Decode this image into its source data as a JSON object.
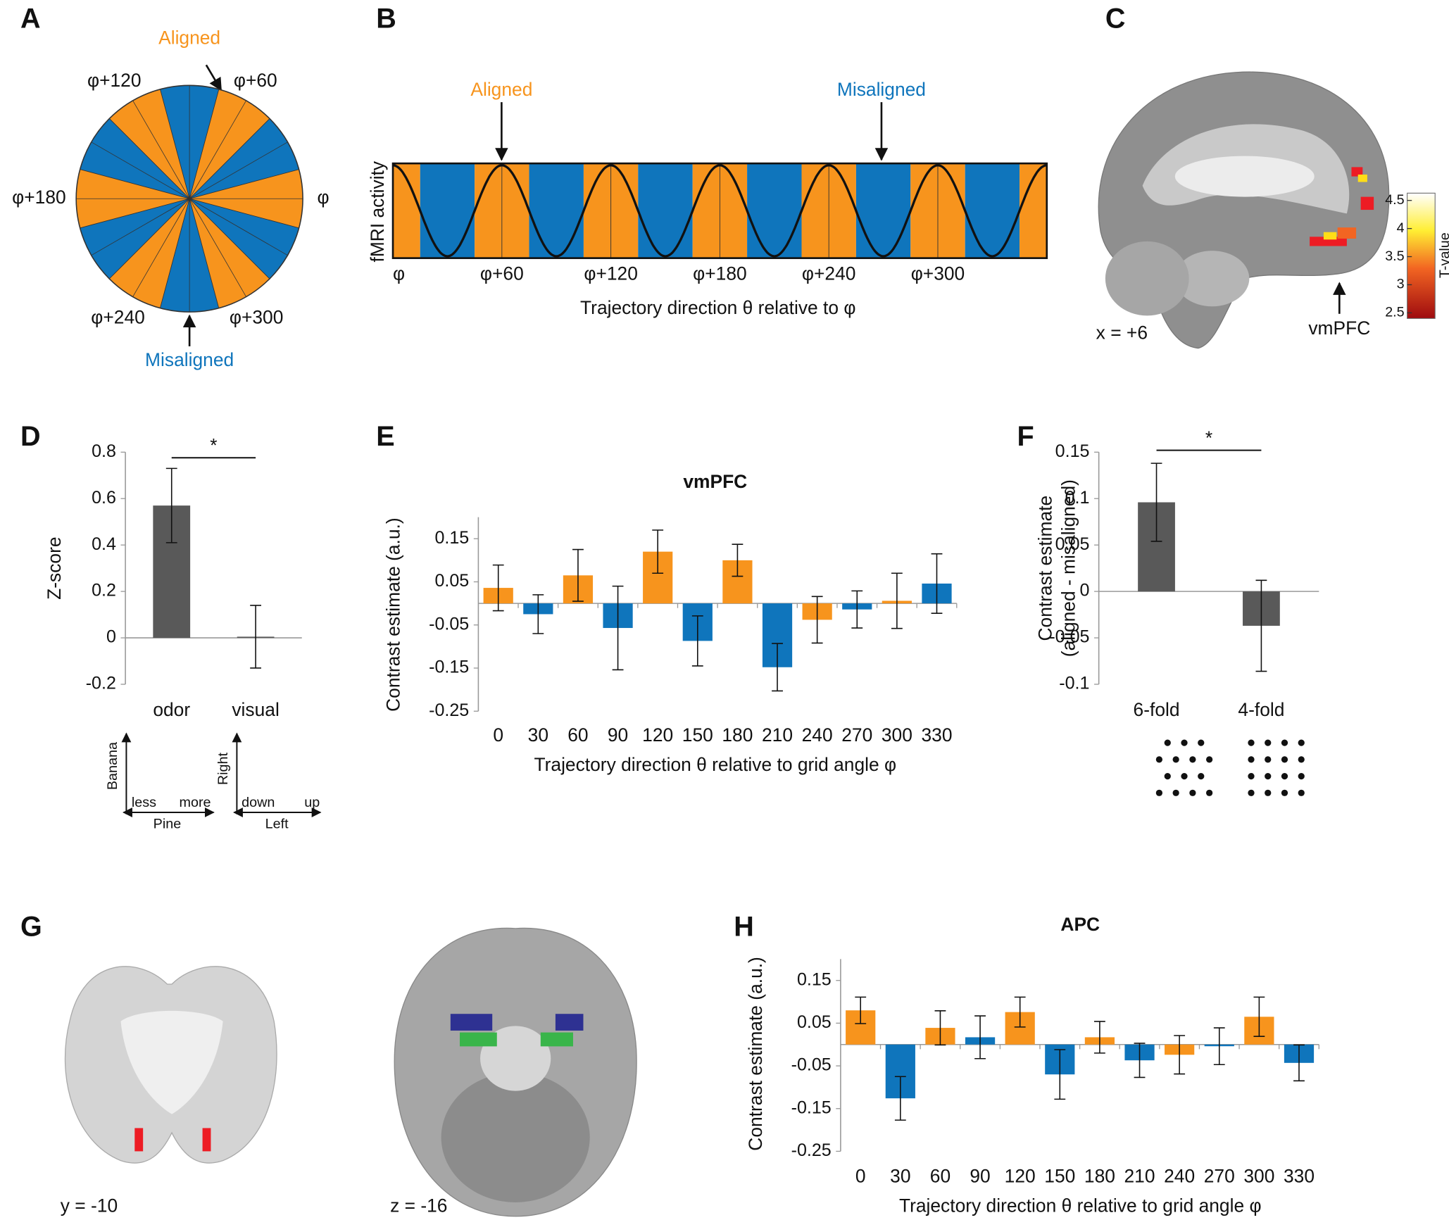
{
  "panel_labels": [
    "A",
    "B",
    "C",
    "D",
    "E",
    "F",
    "G",
    "H"
  ],
  "panel_a": {
    "labels": [
      "φ",
      "φ+60",
      "φ+120",
      "φ+180",
      "φ+240",
      "φ+300"
    ],
    "aligned": "Aligned",
    "misaligned": "Misaligned"
  },
  "panel_b": {
    "y_label": "fMRI activity",
    "x_label": "Trajectory direction θ relative to φ",
    "x_tick_labels": [
      "φ",
      "φ+60",
      "φ+120",
      "φ+180",
      "φ+240",
      "φ+300"
    ],
    "aligned": "Aligned",
    "misaligned": "Misaligned"
  },
  "panel_c": {
    "slice": "x = +6",
    "region": "vmPFC",
    "colorbar_label": "T-value",
    "colorbar_lim": [
      2.4,
      4.63
    ],
    "colorbar_ticks": [
      4.5,
      4,
      3.5,
      3,
      2.5
    ]
  },
  "panel_d_axes": {
    "odor": {
      "y": "Banana",
      "x": "Pine",
      "x_low": "less",
      "x_high": "more"
    },
    "visual": {
      "y": "Right",
      "x": "Left",
      "x_low": "down",
      "x_high": "up"
    }
  },
  "panel_g": {
    "coronal": "y = -10",
    "axial": "z = -16"
  },
  "chart_data": [
    {
      "type": "bar",
      "y_label": "Z-score",
      "categories": [
        "odor",
        "visual"
      ],
      "values": [
        0.57,
        0.005
      ],
      "errors": [
        0.16,
        0.135
      ],
      "color": "#595959",
      "ylim": [
        -0.2,
        0.8
      ],
      "yticks": [
        -0.2,
        0,
        0.2,
        0.4,
        0.6,
        0.8
      ],
      "significance": "*"
    },
    {
      "type": "bar",
      "title": "vmPFC",
      "x_label": "Trajectory direction θ relative to grid angle φ",
      "y_label": "Contrast estimate (a.u.)",
      "categories": [
        "0",
        "30",
        "60",
        "90",
        "120",
        "150",
        "180",
        "210",
        "240",
        "270",
        "300",
        "330"
      ],
      "values": [
        0.036,
        -0.025,
        0.065,
        -0.057,
        0.12,
        -0.087,
        0.1,
        -0.148,
        -0.038,
        -0.014,
        0.006,
        0.046
      ],
      "errors": [
        0.053,
        0.045,
        0.06,
        0.097,
        0.05,
        0.058,
        0.037,
        0.055,
        0.054,
        0.043,
        0.064,
        0.069
      ],
      "colors": [
        "#f7941d",
        "#0f75bc",
        "#f7941d",
        "#0f75bc",
        "#f7941d",
        "#0f75bc",
        "#f7941d",
        "#0f75bc",
        "#f7941d",
        "#0f75bc",
        "#f7941d",
        "#0f75bc"
      ],
      "ylim": [
        -0.25,
        0.2
      ],
      "yticks": [
        -0.25,
        -0.15,
        -0.05,
        0.05,
        0.15
      ]
    },
    {
      "type": "bar",
      "y_label": [
        "Contrast estimate",
        "(aligned - misaligned)"
      ],
      "categories": [
        "6-fold",
        "4-fold"
      ],
      "values": [
        0.096,
        -0.037
      ],
      "errors": [
        0.042,
        0.049
      ],
      "color": "#595959",
      "ylim": [
        -0.1,
        0.15
      ],
      "yticks": [
        -0.1,
        -0.05,
        0,
        0.05,
        0.1,
        0.15
      ],
      "significance": "*"
    },
    {
      "type": "bar",
      "title": "APC",
      "x_label": "Trajectory direction θ relative to grid angle φ",
      "y_label": "Contrast estimate (a.u.)",
      "categories": [
        "0",
        "30",
        "60",
        "90",
        "120",
        "150",
        "180",
        "210",
        "240",
        "270",
        "300",
        "330"
      ],
      "values": [
        0.08,
        -0.126,
        0.039,
        0.017,
        0.076,
        -0.07,
        0.017,
        -0.037,
        -0.024,
        -0.004,
        0.065,
        -0.043
      ],
      "errors": [
        0.031,
        0.051,
        0.04,
        0.05,
        0.035,
        0.058,
        0.037,
        0.04,
        0.045,
        0.043,
        0.046,
        0.042
      ],
      "colors": [
        "#f7941d",
        "#0f75bc",
        "#f7941d",
        "#0f75bc",
        "#f7941d",
        "#0f75bc",
        "#f7941d",
        "#0f75bc",
        "#f7941d",
        "#0f75bc",
        "#f7941d",
        "#0f75bc"
      ],
      "ylim": [
        -0.25,
        0.2
      ],
      "yticks": [
        -0.25,
        -0.15,
        -0.05,
        0.05,
        0.15
      ]
    }
  ]
}
